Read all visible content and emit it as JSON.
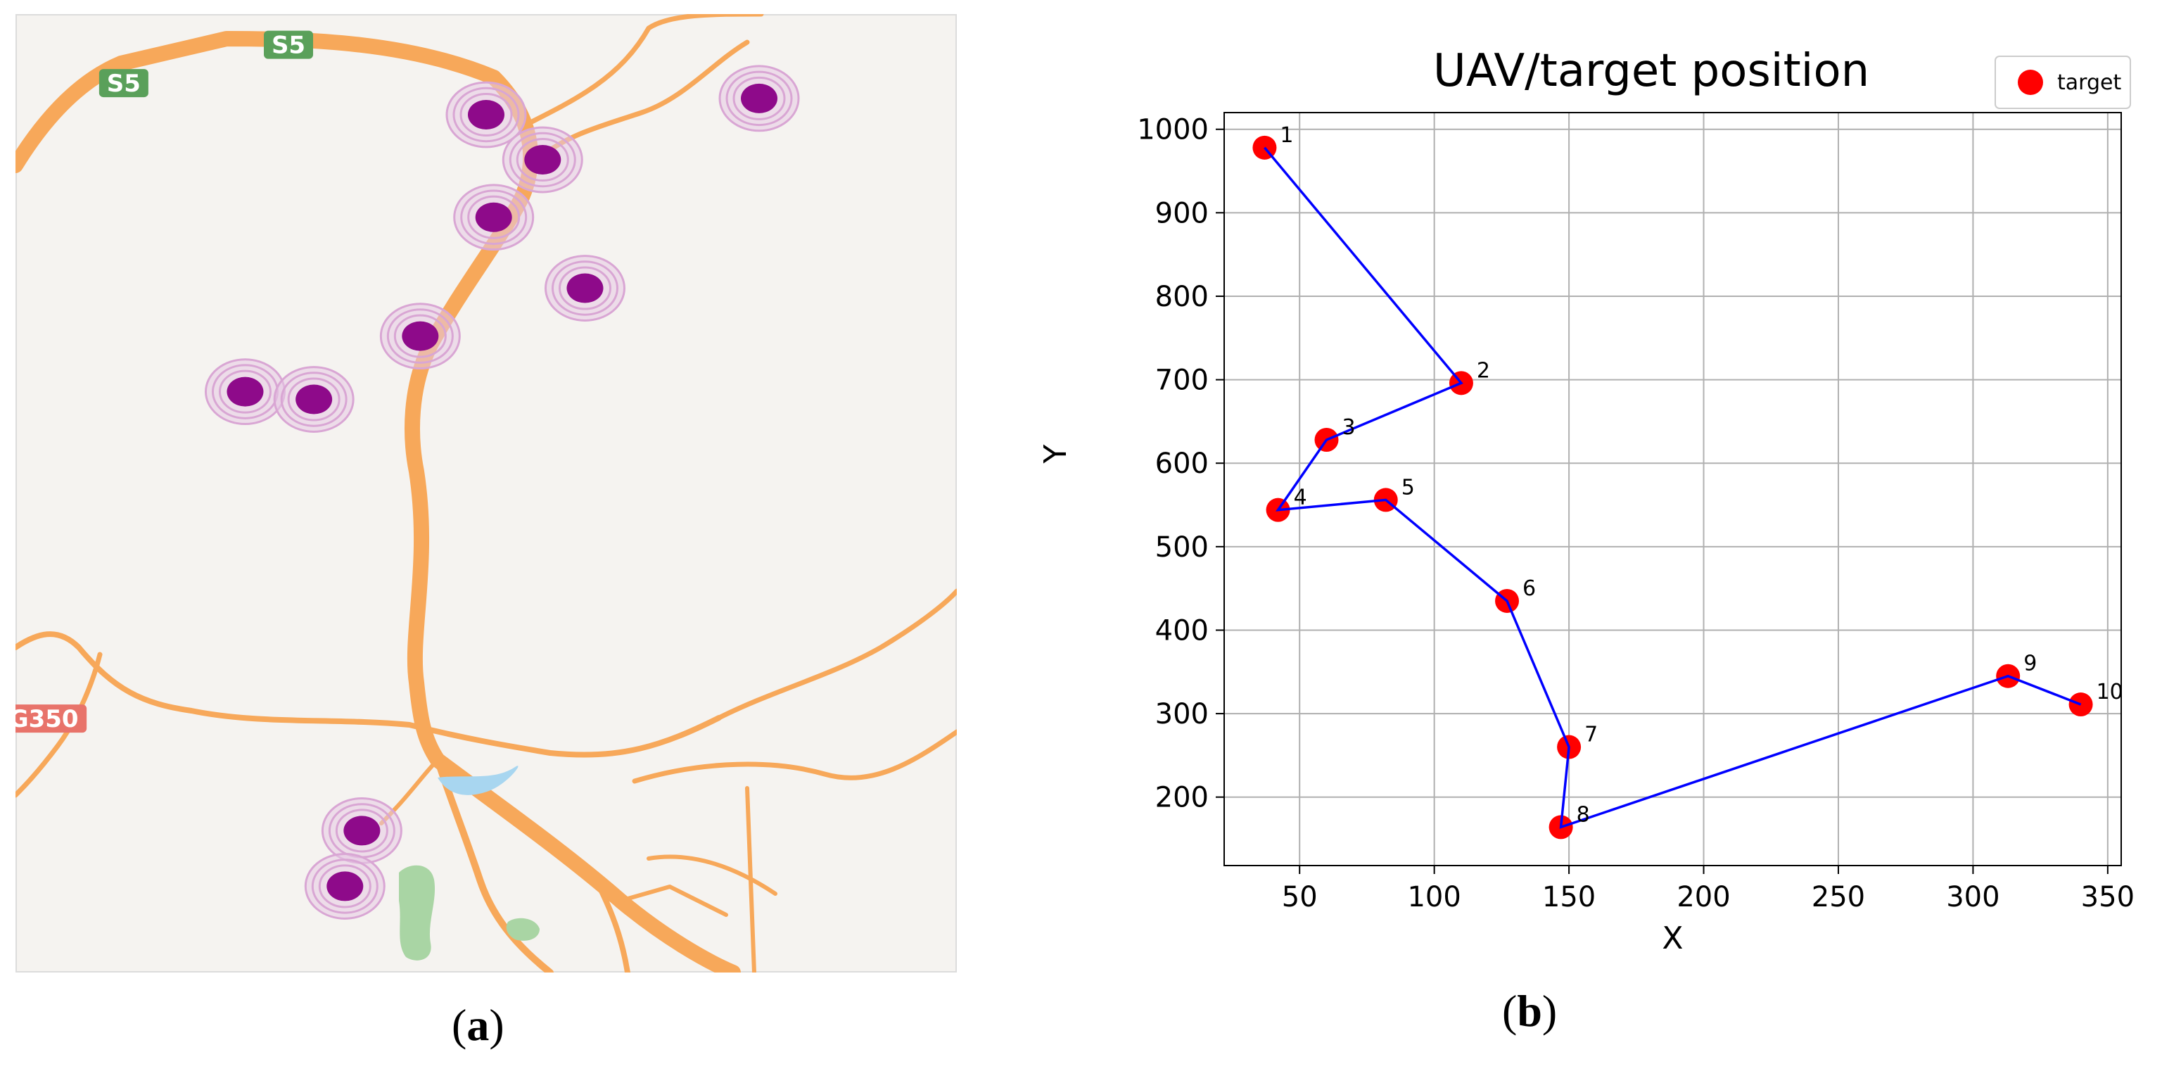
{
  "panels": [
    {
      "id": "a",
      "label_open": "(",
      "label_letter": "a",
      "label_close": ")"
    },
    {
      "id": "b",
      "label_open": "(",
      "label_letter": "b",
      "label_close": ")"
    }
  ],
  "map": {
    "road_shields": [
      {
        "text": "S5",
        "color": "#5aa05a",
        "fx": 0.115,
        "fy": 0.072
      },
      {
        "text": "S5",
        "color": "#5aa05a",
        "fx": 0.29,
        "fy": 0.032
      },
      {
        "text": "G350",
        "color": "#e8736a",
        "fx": 0.03,
        "fy": 0.735
      }
    ],
    "markers": [
      {
        "fx": 0.5,
        "fy": 0.105
      },
      {
        "fx": 0.56,
        "fy": 0.152
      },
      {
        "fx": 0.79,
        "fy": 0.088
      },
      {
        "fx": 0.508,
        "fy": 0.212
      },
      {
        "fx": 0.605,
        "fy": 0.286
      },
      {
        "fx": 0.43,
        "fy": 0.336
      },
      {
        "fx": 0.244,
        "fy": 0.394
      },
      {
        "fx": 0.317,
        "fy": 0.402
      },
      {
        "fx": 0.368,
        "fy": 0.852
      },
      {
        "fx": 0.35,
        "fy": 0.91
      }
    ],
    "colors": {
      "background": "#f5f3f0",
      "road": "#f7a85a",
      "water": "#a8d6f0",
      "park": "#a9d5a4",
      "marker": "#8e0a8a",
      "halo": "#d9a6d4"
    }
  },
  "chart_data": {
    "type": "scatter",
    "title": "UAV/target position",
    "xlabel": "X",
    "ylabel": "Y",
    "xlim": [
      22,
      355
    ],
    "ylim": [
      118,
      1020
    ],
    "xticks": [
      50,
      100,
      150,
      200,
      250,
      300,
      350
    ],
    "yticks": [
      200,
      300,
      400,
      500,
      600,
      700,
      800,
      900,
      1000
    ],
    "grid": true,
    "legend": {
      "position": "top-right",
      "entries": [
        "target"
      ]
    },
    "series": [
      {
        "name": "target",
        "marker_color": "#ff0000",
        "line_color": "#0000ff",
        "points": [
          {
            "label": "1",
            "x": 37,
            "y": 978
          },
          {
            "label": "2",
            "x": 110,
            "y": 696
          },
          {
            "label": "3",
            "x": 60,
            "y": 628
          },
          {
            "label": "4",
            "x": 42,
            "y": 544
          },
          {
            "label": "5",
            "x": 82,
            "y": 556
          },
          {
            "label": "6",
            "x": 127,
            "y": 435
          },
          {
            "label": "7",
            "x": 150,
            "y": 260
          },
          {
            "label": "8",
            "x": 147,
            "y": 164
          },
          {
            "label": "9",
            "x": 313,
            "y": 345
          },
          {
            "label": "10",
            "x": 340,
            "y": 311
          }
        ]
      }
    ]
  }
}
